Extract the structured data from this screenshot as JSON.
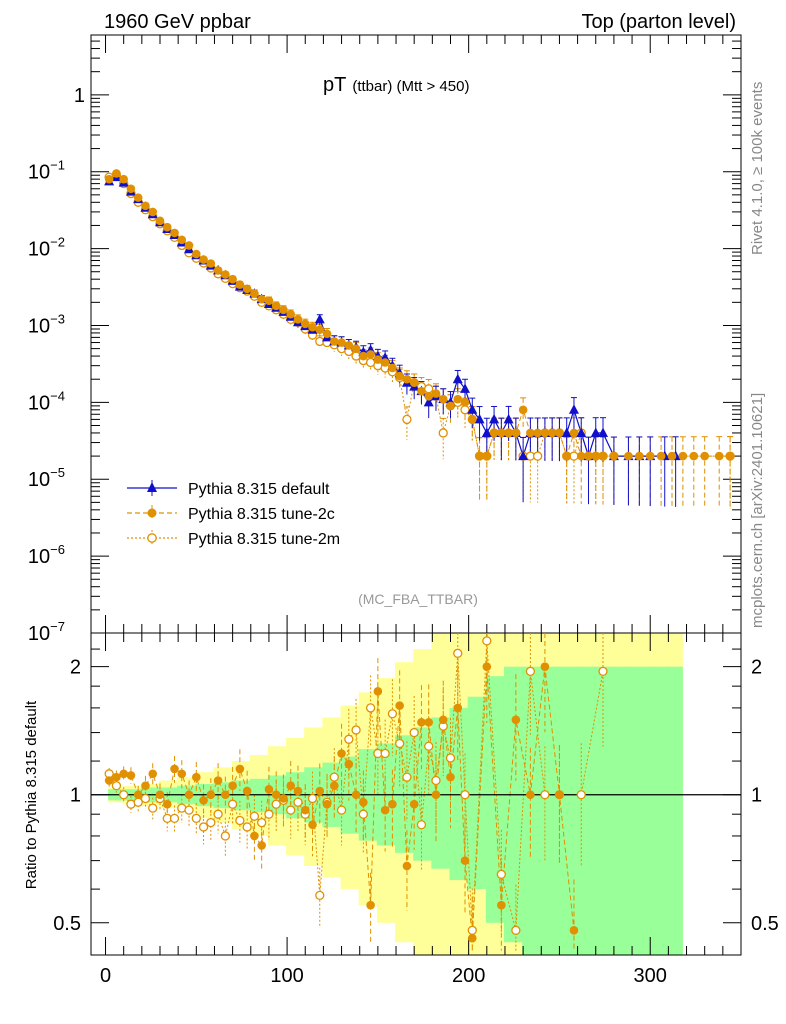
{
  "header": {
    "left": "1960 GeV ppbar",
    "right": "Top (parton level)"
  },
  "side_labels": {
    "rivet": "Rivet 4.1.0, ≥ 100k events",
    "mcplots": "mcplots.cern.ch [arXiv:2401.10621]"
  },
  "chart_data": [
    {
      "type": "scatter",
      "panel": "main",
      "title_main": "pT",
      "title_sub": "(ttbar) (Mtt > 450)",
      "watermark": "(MC_FBA_TTBAR)",
      "yscale": "log",
      "xlim": [
        -8,
        350
      ],
      "ylim": [
        1e-07,
        6
      ],
      "y_ticks": [
        {
          "v": 1,
          "base": "1",
          "exp": ""
        },
        {
          "v": 0.1,
          "base": "10",
          "exp": "−1"
        },
        {
          "v": 0.01,
          "base": "10",
          "exp": "−2"
        },
        {
          "v": 0.001,
          "base": "10",
          "exp": "−3"
        },
        {
          "v": 0.0001,
          "base": "10",
          "exp": "−4"
        },
        {
          "v": 1e-05,
          "base": "10",
          "exp": "−5"
        },
        {
          "v": 1e-06,
          "base": "10",
          "exp": "−6"
        },
        {
          "v": 1e-07,
          "base": "10",
          "exp": "−7"
        }
      ],
      "legend": [
        {
          "label": "Pythia 8.315 default",
          "color": "#1010cc",
          "marker": "triangle",
          "line": "solid"
        },
        {
          "label": "Pythia 8.315 tune-2c",
          "color": "#e09000",
          "marker": "filled-circle",
          "line": "dashed"
        },
        {
          "label": "Pythia 8.315 tune-2m",
          "color": "#e09000",
          "marker": "open-circle",
          "line": "dotted"
        }
      ],
      "series": [
        {
          "name": "Pythia 8.315 default",
          "color": "#1010cc",
          "x": [
            2,
            6,
            10,
            14,
            18,
            22,
            26,
            30,
            34,
            38,
            42,
            46,
            50,
            54,
            58,
            62,
            66,
            70,
            74,
            78,
            82,
            86,
            90,
            94,
            98,
            102,
            106,
            110,
            114,
            118,
            122,
            126,
            130,
            134,
            138,
            142,
            146,
            150,
            154,
            158,
            162,
            166,
            170,
            174,
            178,
            182,
            186,
            190,
            194,
            198,
            202,
            206,
            210,
            214,
            218,
            222,
            226,
            230,
            234,
            238,
            242,
            246,
            250,
            254,
            258,
            262,
            266,
            270,
            274,
            280,
            288,
            294,
            300,
            308,
            314
          ],
          "y": [
            0.075,
            0.085,
            0.072,
            0.055,
            0.044,
            0.034,
            0.028,
            0.022,
            0.018,
            0.015,
            0.012,
            0.0098,
            0.0082,
            0.007,
            0.006,
            0.0052,
            0.0045,
            0.0038,
            0.0032,
            0.0029,
            0.0026,
            0.0022,
            0.0019,
            0.0017,
            0.0015,
            0.0013,
            0.0011,
            0.00098,
            0.00088,
            0.0012,
            0.0007,
            0.00062,
            0.0006,
            0.00055,
            0.00052,
            0.00045,
            0.00048,
            0.0004,
            0.00038,
            0.0003,
            0.00024,
            0.00018,
            0.00016,
            0.00014,
            0.0001,
            0.00012,
            0.00011,
            0.0001,
            0.0002,
            0.00015,
            8e-05,
            6e-05,
            4e-05,
            6e-05,
            4e-05,
            6e-05,
            4e-05,
            2e-05,
            4e-05,
            4e-05,
            4e-05,
            4e-05,
            4e-05,
            4e-05,
            8e-05,
            4e-05,
            2e-05,
            4e-05,
            4e-05,
            2e-05,
            2e-05,
            2e-05,
            2e-05,
            2e-05,
            2e-05
          ]
        },
        {
          "name": "Pythia 8.315 tune-2c",
          "color": "#e09000",
          "x": [
            2,
            6,
            10,
            14,
            18,
            22,
            26,
            30,
            34,
            38,
            42,
            46,
            50,
            54,
            58,
            62,
            66,
            70,
            74,
            78,
            82,
            86,
            90,
            94,
            98,
            102,
            106,
            110,
            114,
            118,
            122,
            126,
            130,
            134,
            138,
            142,
            146,
            150,
            154,
            158,
            162,
            166,
            170,
            174,
            178,
            182,
            186,
            190,
            194,
            198,
            202,
            206,
            210,
            214,
            218,
            222,
            226,
            230,
            234,
            238,
            242,
            246,
            250,
            254,
            258,
            262,
            266,
            270,
            274,
            280,
            288,
            294,
            300,
            306,
            312,
            318,
            324,
            330,
            338,
            344
          ],
          "y": [
            0.08,
            0.095,
            0.08,
            0.06,
            0.046,
            0.036,
            0.03,
            0.023,
            0.019,
            0.016,
            0.013,
            0.011,
            0.0085,
            0.0072,
            0.0064,
            0.0052,
            0.0046,
            0.004,
            0.0034,
            0.003,
            0.0026,
            0.0022,
            0.0021,
            0.0018,
            0.0016,
            0.0014,
            0.0012,
            0.00105,
            0.00095,
            0.00088,
            0.00078,
            0.00062,
            0.0006,
            0.00055,
            0.0005,
            0.0004,
            0.00042,
            0.00036,
            0.00033,
            0.00028,
            0.00022,
            0.0002,
            0.00018,
            0.00014,
            0.00012,
            0.00013,
            0.00011,
            9e-05,
            0.00011,
            0.0001,
            6e-05,
            2e-05,
            2e-05,
            4e-05,
            4e-05,
            4e-05,
            4e-05,
            8e-05,
            4e-05,
            4e-05,
            4e-05,
            4e-05,
            4e-05,
            2e-05,
            4e-05,
            2e-05,
            2e-05,
            2e-05,
            2e-05,
            2e-05,
            2e-05,
            2e-05,
            2e-05,
            2e-05,
            2e-05,
            2e-05,
            2e-05,
            2e-05,
            2e-05,
            2e-05
          ]
        },
        {
          "name": "Pythia 8.315 tune-2m",
          "color": "#e09000",
          "x": [
            2,
            6,
            10,
            14,
            18,
            22,
            26,
            30,
            34,
            38,
            42,
            46,
            50,
            54,
            58,
            62,
            66,
            70,
            74,
            78,
            82,
            86,
            90,
            94,
            98,
            102,
            106,
            110,
            114,
            118,
            122,
            126,
            130,
            134,
            138,
            142,
            146,
            150,
            154,
            158,
            162,
            166,
            170,
            174,
            178,
            182,
            186,
            190,
            194,
            198,
            202,
            206,
            210,
            214,
            218,
            222,
            226,
            230,
            234,
            238,
            242,
            246,
            250,
            254,
            258,
            262,
            266,
            270,
            274,
            280,
            344
          ],
          "y": [
            0.085,
            0.09,
            0.07,
            0.052,
            0.04,
            0.032,
            0.026,
            0.021,
            0.017,
            0.014,
            0.011,
            0.0088,
            0.0075,
            0.0065,
            0.0056,
            0.0047,
            0.0041,
            0.0035,
            0.0031,
            0.0028,
            0.0024,
            0.002,
            0.0018,
            0.0016,
            0.0014,
            0.0012,
            0.0011,
            0.0009,
            0.00075,
            0.00062,
            0.0006,
            0.00056,
            0.0005,
            0.00046,
            0.0004,
            0.00035,
            0.00033,
            0.0003,
            0.00028,
            0.00025,
            0.00021,
            6e-05,
            0.00018,
            0.00016,
            0.00015,
            0.00012,
            4e-05,
            9e-05,
            0.0001,
            8e-05,
            6e-05,
            2e-05,
            2e-05,
            4e-05,
            4e-05,
            4e-05,
            4e-05,
            2e-05,
            2e-05,
            2e-05,
            4e-05,
            4e-05,
            4e-05,
            2e-05,
            2e-05,
            4e-05,
            2e-05,
            2e-05,
            2e-05,
            2e-05,
            2e-05
          ]
        }
      ]
    },
    {
      "type": "scatter",
      "panel": "ratio",
      "ylabel": "Ratio to Pythia 8.315 default",
      "yscale": "log",
      "xlim": [
        -8,
        350
      ],
      "ylim": [
        0.42,
        2.4
      ],
      "x_ticks": [
        0,
        100,
        200,
        300
      ],
      "y_ticks": [
        {
          "v": 0.5,
          "label": "0.5"
        },
        {
          "v": 1,
          "label": "1"
        },
        {
          "v": 2,
          "label": "2"
        }
      ],
      "band_stat": {
        "x": [
          2,
          10,
          20,
          30,
          40,
          50,
          60,
          70,
          80,
          90,
          100,
          110,
          120,
          130,
          140,
          150,
          160,
          170,
          180,
          190,
          200,
          210,
          220,
          230,
          240,
          250,
          260,
          270,
          280,
          290,
          300,
          310
        ],
        "lo": [
          0.97,
          0.97,
          0.96,
          0.96,
          0.95,
          0.94,
          0.93,
          0.92,
          0.91,
          0.9,
          0.88,
          0.86,
          0.84,
          0.81,
          0.78,
          0.76,
          0.73,
          0.7,
          0.67,
          0.63,
          0.6,
          0.5,
          0.45,
          0.42,
          0.42,
          0.42,
          0.42,
          0.42,
          0.42,
          0.42,
          0.42,
          0.42
        ],
        "hi": [
          1.03,
          1.03,
          1.04,
          1.04,
          1.05,
          1.06,
          1.07,
          1.08,
          1.09,
          1.11,
          1.13,
          1.16,
          1.19,
          1.23,
          1.28,
          1.32,
          1.38,
          1.44,
          1.52,
          1.6,
          1.7,
          1.9,
          2.0,
          2.0,
          2.0,
          2.0,
          2.0,
          2.0,
          2.0,
          2.0,
          2.0,
          2.0
        ]
      },
      "band_total": {
        "x": [
          2,
          10,
          20,
          30,
          40,
          50,
          60,
          70,
          80,
          90,
          100,
          110,
          120,
          130,
          140,
          150,
          160,
          170,
          180,
          190,
          200,
          210,
          220,
          230,
          240,
          250,
          260,
          270,
          280,
          290,
          300,
          310
        ],
        "lo": [
          0.96,
          0.95,
          0.94,
          0.93,
          0.91,
          0.88,
          0.86,
          0.83,
          0.8,
          0.76,
          0.72,
          0.68,
          0.64,
          0.6,
          0.55,
          0.5,
          0.45,
          0.42,
          0.42,
          0.42,
          0.42,
          0.42,
          0.42,
          0.42,
          0.42,
          0.42,
          0.42,
          0.42,
          0.42,
          0.42,
          0.42,
          0.42
        ],
        "hi": [
          1.04,
          1.05,
          1.06,
          1.08,
          1.1,
          1.13,
          1.16,
          1.2,
          1.24,
          1.3,
          1.36,
          1.44,
          1.52,
          1.62,
          1.74,
          1.88,
          2.05,
          2.2,
          2.4,
          2.4,
          2.4,
          2.4,
          2.4,
          2.4,
          2.4,
          2.4,
          2.4,
          2.4,
          2.4,
          2.4,
          2.4,
          2.4
        ]
      },
      "series": [
        {
          "name": "tune-2c ratio",
          "color": "#e09000",
          "x": [
            2,
            6,
            10,
            14,
            18,
            22,
            26,
            30,
            34,
            38,
            42,
            46,
            50,
            54,
            58,
            62,
            66,
            70,
            74,
            78,
            82,
            86,
            90,
            94,
            98,
            102,
            106,
            110,
            114,
            118,
            122,
            126,
            130,
            134,
            138,
            142,
            146,
            150,
            154,
            158,
            162,
            166,
            170,
            174,
            178,
            182,
            186,
            190,
            194,
            198,
            202,
            210,
            218,
            226,
            234,
            242,
            250,
            258
          ],
          "y": [
            1.08,
            1.1,
            1.12,
            1.11,
            1.0,
            1.05,
            1.12,
            1.0,
            0.95,
            1.15,
            1.12,
            1.0,
            1.1,
            0.97,
            1.0,
            1.08,
            1.0,
            1.05,
            1.15,
            1.02,
            0.8,
            0.76,
            1.03,
            1.0,
            0.98,
            1.05,
            1.02,
            0.92,
            0.85,
            1.02,
            0.95,
            1.05,
            1.25,
            1.18,
            1.0,
            0.96,
            0.55,
            1.75,
            0.92,
            0.95,
            1.62,
            0.68,
            0.95,
            1.48,
            1.48,
            1.0,
            1.5,
            1.1,
            1.6,
            0.7,
            0.46,
            2.0,
            0.55,
            1.5,
            1.0,
            2.0,
            1.0,
            0.48
          ]
        },
        {
          "name": "tune-2m ratio",
          "color": "#e09000",
          "x": [
            2,
            6,
            10,
            14,
            18,
            22,
            26,
            30,
            34,
            38,
            42,
            46,
            50,
            54,
            58,
            62,
            66,
            70,
            74,
            78,
            82,
            86,
            90,
            94,
            98,
            102,
            106,
            110,
            114,
            118,
            122,
            126,
            130,
            134,
            138,
            142,
            146,
            150,
            154,
            158,
            162,
            166,
            170,
            174,
            178,
            182,
            186,
            190,
            194,
            198,
            202,
            210,
            218,
            226,
            234,
            242,
            250,
            262,
            274
          ],
          "y": [
            1.12,
            1.05,
            1.0,
            0.95,
            0.96,
            0.98,
            0.93,
            0.98,
            0.88,
            0.88,
            0.93,
            0.92,
            0.88,
            0.84,
            0.86,
            0.9,
            0.8,
            0.95,
            0.87,
            0.84,
            0.89,
            0.86,
            0.9,
            0.95,
            0.97,
            0.92,
            0.96,
            0.9,
            0.98,
            0.58,
            0.96,
            1.1,
            0.92,
            1.35,
            1.42,
            0.9,
            1.6,
            1.25,
            1.25,
            1.55,
            1.32,
            1.1,
            1.4,
            0.85,
            1.3,
            1.08,
            1.45,
            1.22,
            2.15,
            1.0,
            0.48,
            2.3,
            0.65,
            0.48,
            1.95,
            1.0,
            1.0,
            1.0,
            1.95
          ]
        }
      ]
    }
  ]
}
